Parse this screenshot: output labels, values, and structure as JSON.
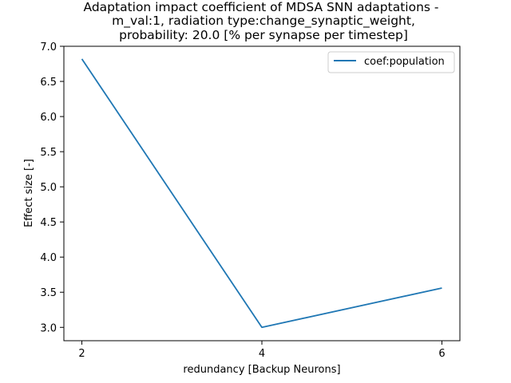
{
  "chart_data": {
    "type": "line",
    "title_lines": [
      "Adaptation impact coefficient of MDSA SNN adaptations -",
      "m_val:1, radiation type:change_synaptic_weight,",
      "probability: 20.0 [% per synapse per timestep]"
    ],
    "xlabel": "redundancy [Backup Neurons]",
    "ylabel": "Effect size [-]",
    "x_ticks": [
      2,
      4,
      6
    ],
    "y_ticks": [
      3.0,
      3.5,
      4.0,
      4.5,
      5.0,
      5.5,
      6.0,
      6.5,
      7.0
    ],
    "xlim": [
      1.8,
      6.2
    ],
    "ylim": [
      2.81,
      7.0
    ],
    "grid": false,
    "legend_position": "top-right",
    "series": [
      {
        "name": "coef:population",
        "color": "#1f77b4",
        "x": [
          2,
          4,
          6
        ],
        "y": [
          6.82,
          3.0,
          3.56
        ]
      }
    ]
  }
}
